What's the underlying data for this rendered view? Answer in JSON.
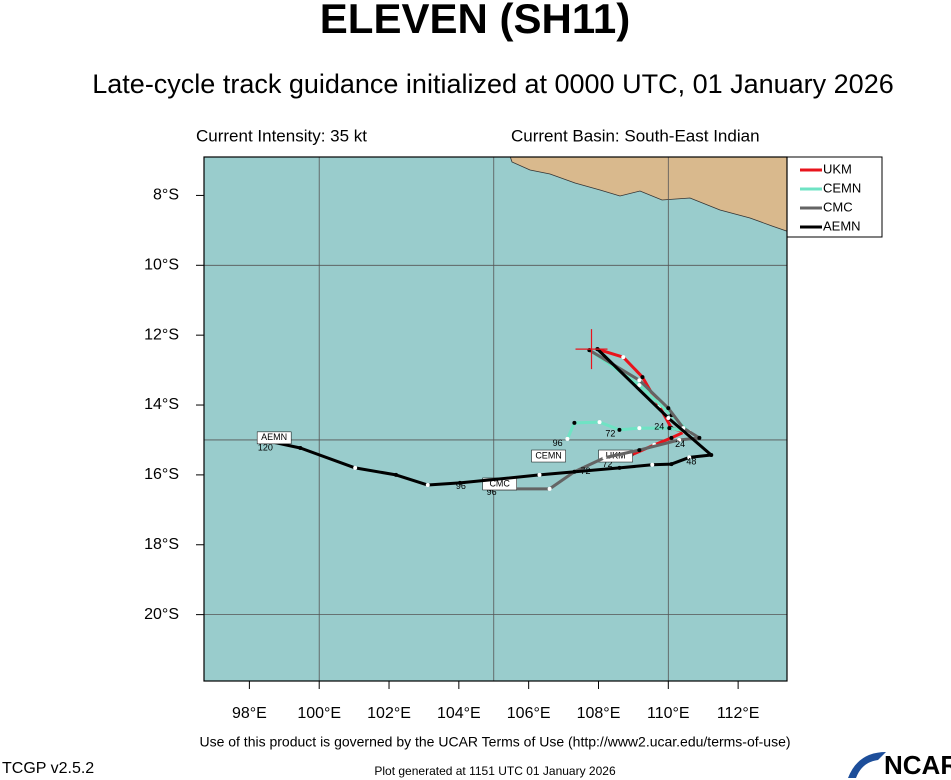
{
  "chart_data": {
    "type": "track",
    "title": "ELEVEN (SH11)",
    "subtitle": "Late-cycle track guidance initialized at 0000 UTC, 01 January 2026",
    "info_left": "Current Intensity: 35 kt",
    "info_right": "Current Basin: South-East Indian",
    "footer": "Use of this product is governed by the UCAR Terms of Use (http://www2.ucar.edu/terms-of-use)",
    "version": "TCGP v2.5.2",
    "generated": "Plot generated at 1151 UTC   01 January 2026",
    "logo": "NCAR",
    "xlim": [
      96.7,
      113.4
    ],
    "ylim": [
      -21.9,
      -6.9
    ],
    "xticks": [
      {
        "value": 98,
        "label": "98°E"
      },
      {
        "value": 100,
        "label": "100°E"
      },
      {
        "value": 102,
        "label": "102°E"
      },
      {
        "value": 104,
        "label": "104°E"
      },
      {
        "value": 106,
        "label": "106°E"
      },
      {
        "value": 108,
        "label": "108°E"
      },
      {
        "value": 110,
        "label": "110°E"
      },
      {
        "value": 112,
        "label": "112°E"
      }
    ],
    "yticks": [
      {
        "value": -8,
        "label": "8°S"
      },
      {
        "value": -10,
        "label": "10°S"
      },
      {
        "value": -12,
        "label": "12°S"
      },
      {
        "value": -14,
        "label": "14°S"
      },
      {
        "value": -16,
        "label": "16°S"
      },
      {
        "value": -18,
        "label": "18°S"
      },
      {
        "value": -20,
        "label": "20°S"
      }
    ],
    "grid_x": [
      100,
      105,
      110
    ],
    "grid_y": [
      -10,
      -15,
      -20
    ],
    "initial_position": [
      107.8,
      -12.4
    ],
    "legend": "top-right-outside",
    "series": [
      {
        "name": "UKM",
        "color": "#e8141c",
        "x": [
          107.97,
          108.71,
          109.26,
          109.74,
          110.09,
          110.46,
          110.09,
          109.6,
          108.94
        ],
        "y": [
          -12.4,
          -12.63,
          -13.2,
          -14.03,
          -14.66,
          -14.77,
          -14.94,
          -15.14,
          -15.43
        ],
        "label_at": [
          108.49,
          -15.46
        ],
        "hour_labels": [
          {
            "text": "72",
            "x": 108.26,
            "y": -15.71
          }
        ]
      },
      {
        "name": "CEMN",
        "color": "#6fe3c4",
        "x": [
          107.74,
          109.17,
          110.09,
          110.6,
          110.03,
          109.17,
          108.6,
          108.03,
          107.31,
          107.11
        ],
        "y": [
          -12.43,
          -13.43,
          -14.29,
          -14.77,
          -14.66,
          -14.66,
          -14.71,
          -14.49,
          -14.51,
          -14.97
        ],
        "label_at": [
          106.57,
          -15.46
        ],
        "hour_labels": [
          {
            "text": "96",
            "x": 106.83,
            "y": -15.11
          },
          {
            "text": "72",
            "x": 108.34,
            "y": -14.83
          },
          {
            "text": "24",
            "x": 109.74,
            "y": -14.63
          }
        ]
      },
      {
        "name": "CMC",
        "color": "#646464",
        "x": [
          107.74,
          109.17,
          110.0,
          110.43,
          110.89,
          110.31,
          109.17,
          108.17,
          107.31,
          106.6,
          104.89
        ],
        "y": [
          -12.43,
          -13.29,
          -14.09,
          -14.66,
          -14.94,
          -15.0,
          -15.29,
          -15.51,
          -15.91,
          -16.4,
          -16.4
        ],
        "label_at": [
          105.17,
          -16.26
        ],
        "hour_labels": [
          {
            "text": "96",
            "x": 104.94,
            "y": -16.51
          },
          {
            "text": "72",
            "x": 107.63,
            "y": -15.91
          },
          {
            "text": "24",
            "x": 110.34,
            "y": -15.14
          }
        ]
      },
      {
        "name": "AEMN",
        "color": "#000000",
        "x": [
          107.97,
          110.0,
          111.23,
          110.6,
          110.09,
          109.54,
          108.6,
          106.31,
          104.03,
          103.11,
          102.2,
          101.03,
          99.46,
          98.66
        ],
        "y": [
          -12.4,
          -14.37,
          -15.43,
          -15.5,
          -15.69,
          -15.71,
          -15.8,
          -16.0,
          -16.23,
          -16.29,
          -16.0,
          -15.8,
          -15.23,
          -15.06
        ],
        "label_at": [
          98.71,
          -14.94
        ],
        "hour_labels": [
          {
            "text": "120",
            "x": 98.46,
            "y": -15.23
          },
          {
            "text": "96",
            "x": 104.06,
            "y": -16.34
          },
          {
            "text": "48",
            "x": 110.66,
            "y": -15.63
          }
        ]
      }
    ]
  }
}
